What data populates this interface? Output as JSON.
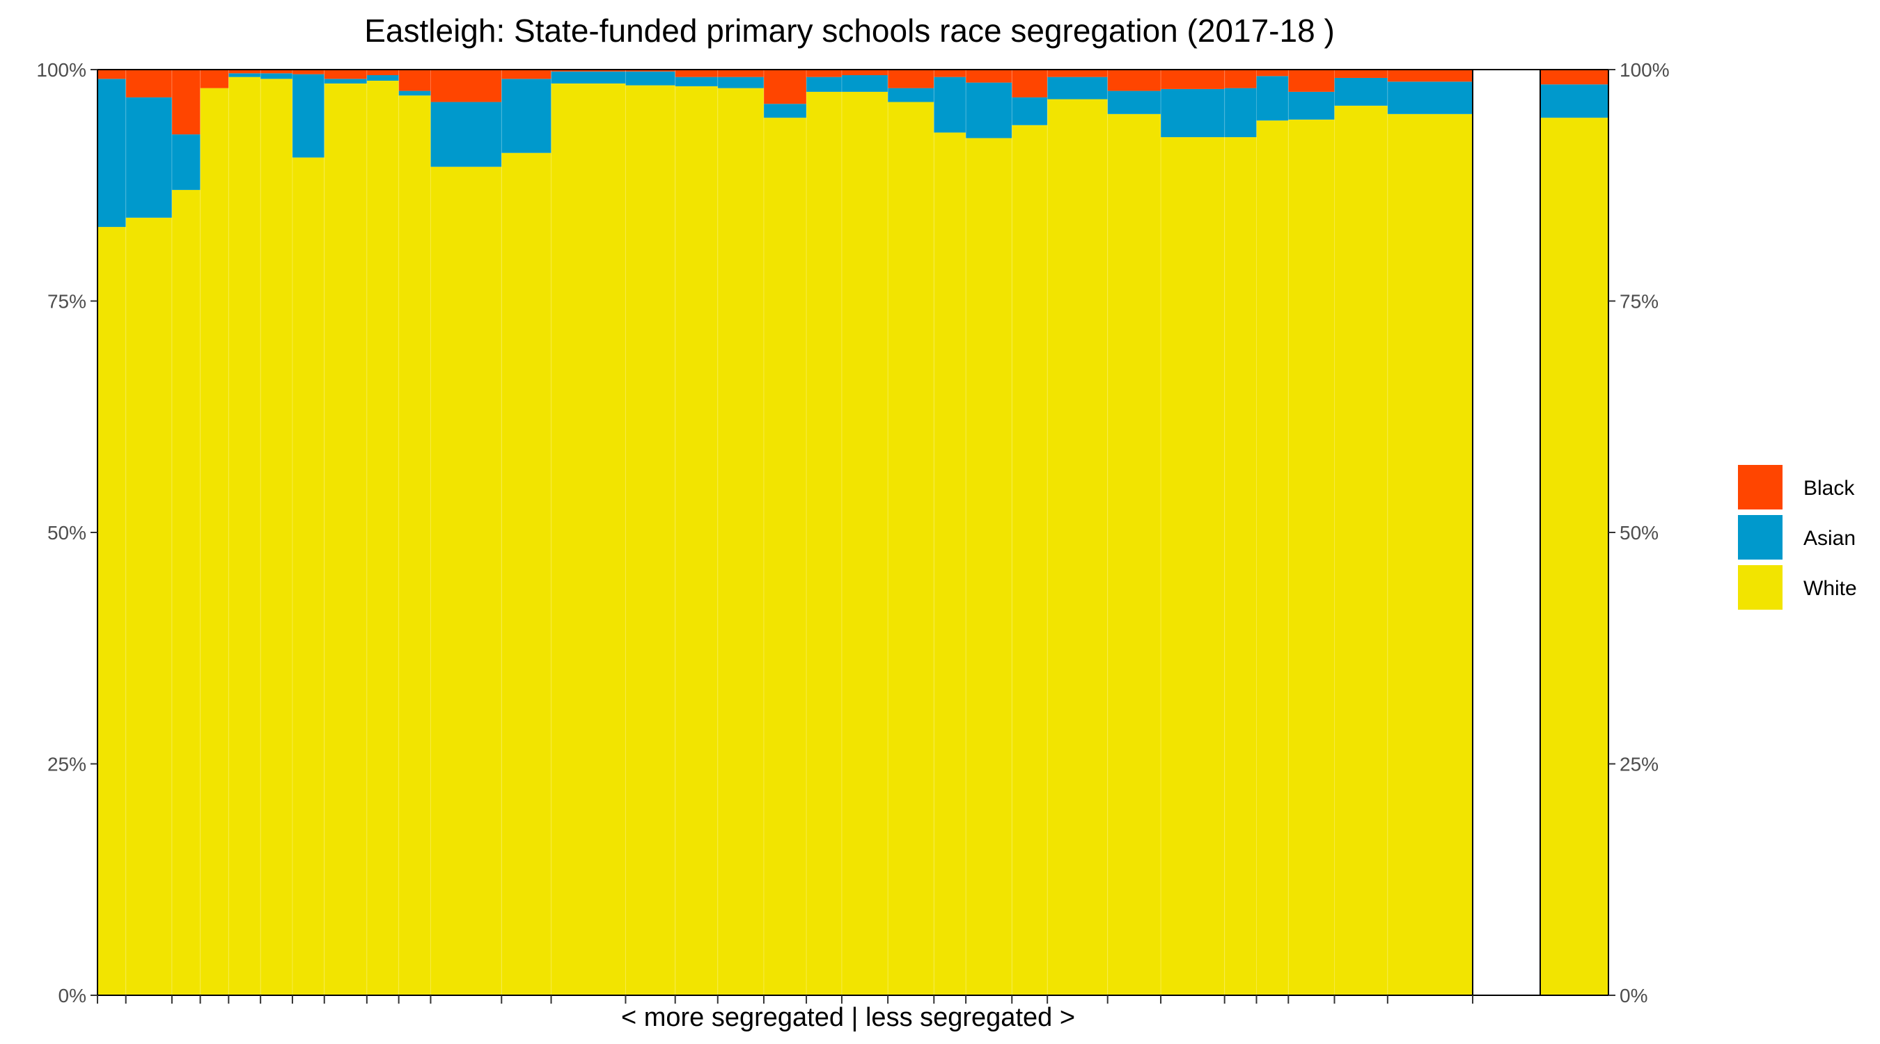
{
  "chart_data": {
    "type": "bar",
    "stacked": true,
    "variable_width": true,
    "title": "Eastleigh: State-funded primary schools race segregation (2017-18 )",
    "xlabel": "< more segregated | less segregated >",
    "ylabel": "",
    "ylim": [
      0,
      1
    ],
    "y_ticks": [
      "0%",
      "25%",
      "50%",
      "75%",
      "100%"
    ],
    "secondary_y_axis": true,
    "grid": false,
    "legend_position": "right",
    "series": [
      {
        "name": "Black",
        "color": "#ff4500"
      },
      {
        "name": "Asian",
        "color": "#0099cc"
      },
      {
        "name": "White",
        "color": "#f2e400"
      }
    ],
    "schools": [
      {
        "share": 0.8,
        "white": 0.83,
        "asian": 0.16,
        "black": 0.01
      },
      {
        "share": 1.3,
        "white": 0.84,
        "asian": 0.13,
        "black": 0.03
      },
      {
        "share": 0.8,
        "white": 0.87,
        "asian": 0.06,
        "black": 0.07
      },
      {
        "share": 0.8,
        "white": 0.98,
        "asian": 0.0,
        "black": 0.02
      },
      {
        "share": 0.9,
        "white": 0.992,
        "asian": 0.004,
        "black": 0.004
      },
      {
        "share": 0.9,
        "white": 0.99,
        "asian": 0.006,
        "black": 0.004
      },
      {
        "share": 0.9,
        "white": 0.905,
        "asian": 0.09,
        "black": 0.005
      },
      {
        "share": 1.2,
        "white": 0.985,
        "asian": 0.005,
        "black": 0.01
      },
      {
        "share": 0.9,
        "white": 0.988,
        "asian": 0.006,
        "black": 0.006
      },
      {
        "share": 0.9,
        "white": 0.972,
        "asian": 0.005,
        "black": 0.023
      },
      {
        "share": 2.0,
        "white": 0.895,
        "asian": 0.07,
        "black": 0.035
      },
      {
        "share": 1.4,
        "white": 0.91,
        "asian": 0.08,
        "black": 0.01
      },
      {
        "share": 2.1,
        "white": 0.985,
        "asian": 0.013,
        "black": 0.002
      },
      {
        "share": 1.4,
        "white": 0.983,
        "asian": 0.015,
        "black": 0.002
      },
      {
        "share": 1.2,
        "white": 0.982,
        "asian": 0.01,
        "black": 0.008
      },
      {
        "share": 1.3,
        "white": 0.98,
        "asian": 0.012,
        "black": 0.008
      },
      {
        "share": 1.2,
        "white": 0.948,
        "asian": 0.015,
        "black": 0.037
      },
      {
        "share": 1.0,
        "white": 0.976,
        "asian": 0.016,
        "black": 0.008
      },
      {
        "share": 1.3,
        "white": 0.976,
        "asian": 0.018,
        "black": 0.006
      },
      {
        "share": 1.3,
        "white": 0.965,
        "asian": 0.015,
        "black": 0.02
      },
      {
        "share": 0.9,
        "white": 0.932,
        "asian": 0.06,
        "black": 0.008
      },
      {
        "share": 1.3,
        "white": 0.926,
        "asian": 0.06,
        "black": 0.014
      },
      {
        "share": 1.0,
        "white": 0.94,
        "asian": 0.03,
        "black": 0.03
      },
      {
        "share": 1.7,
        "white": 0.968,
        "asian": 0.024,
        "black": 0.008
      },
      {
        "share": 1.5,
        "white": 0.952,
        "asian": 0.025,
        "black": 0.023
      },
      {
        "share": 1.8,
        "white": 0.927,
        "asian": 0.052,
        "black": 0.021
      },
      {
        "share": 0.9,
        "white": 0.927,
        "asian": 0.053,
        "black": 0.02
      },
      {
        "share": 0.9,
        "white": 0.945,
        "asian": 0.048,
        "black": 0.007
      },
      {
        "share": 1.3,
        "white": 0.946,
        "asian": 0.03,
        "black": 0.024
      },
      {
        "share": 1.5,
        "white": 0.961,
        "asian": 0.03,
        "black": 0.009
      },
      {
        "share": 2.4,
        "white": 0.952,
        "asian": 0.035,
        "black": 0.013
      }
    ],
    "district_total": {
      "white": 0.948,
      "asian": 0.036,
      "black": 0.016
    }
  }
}
